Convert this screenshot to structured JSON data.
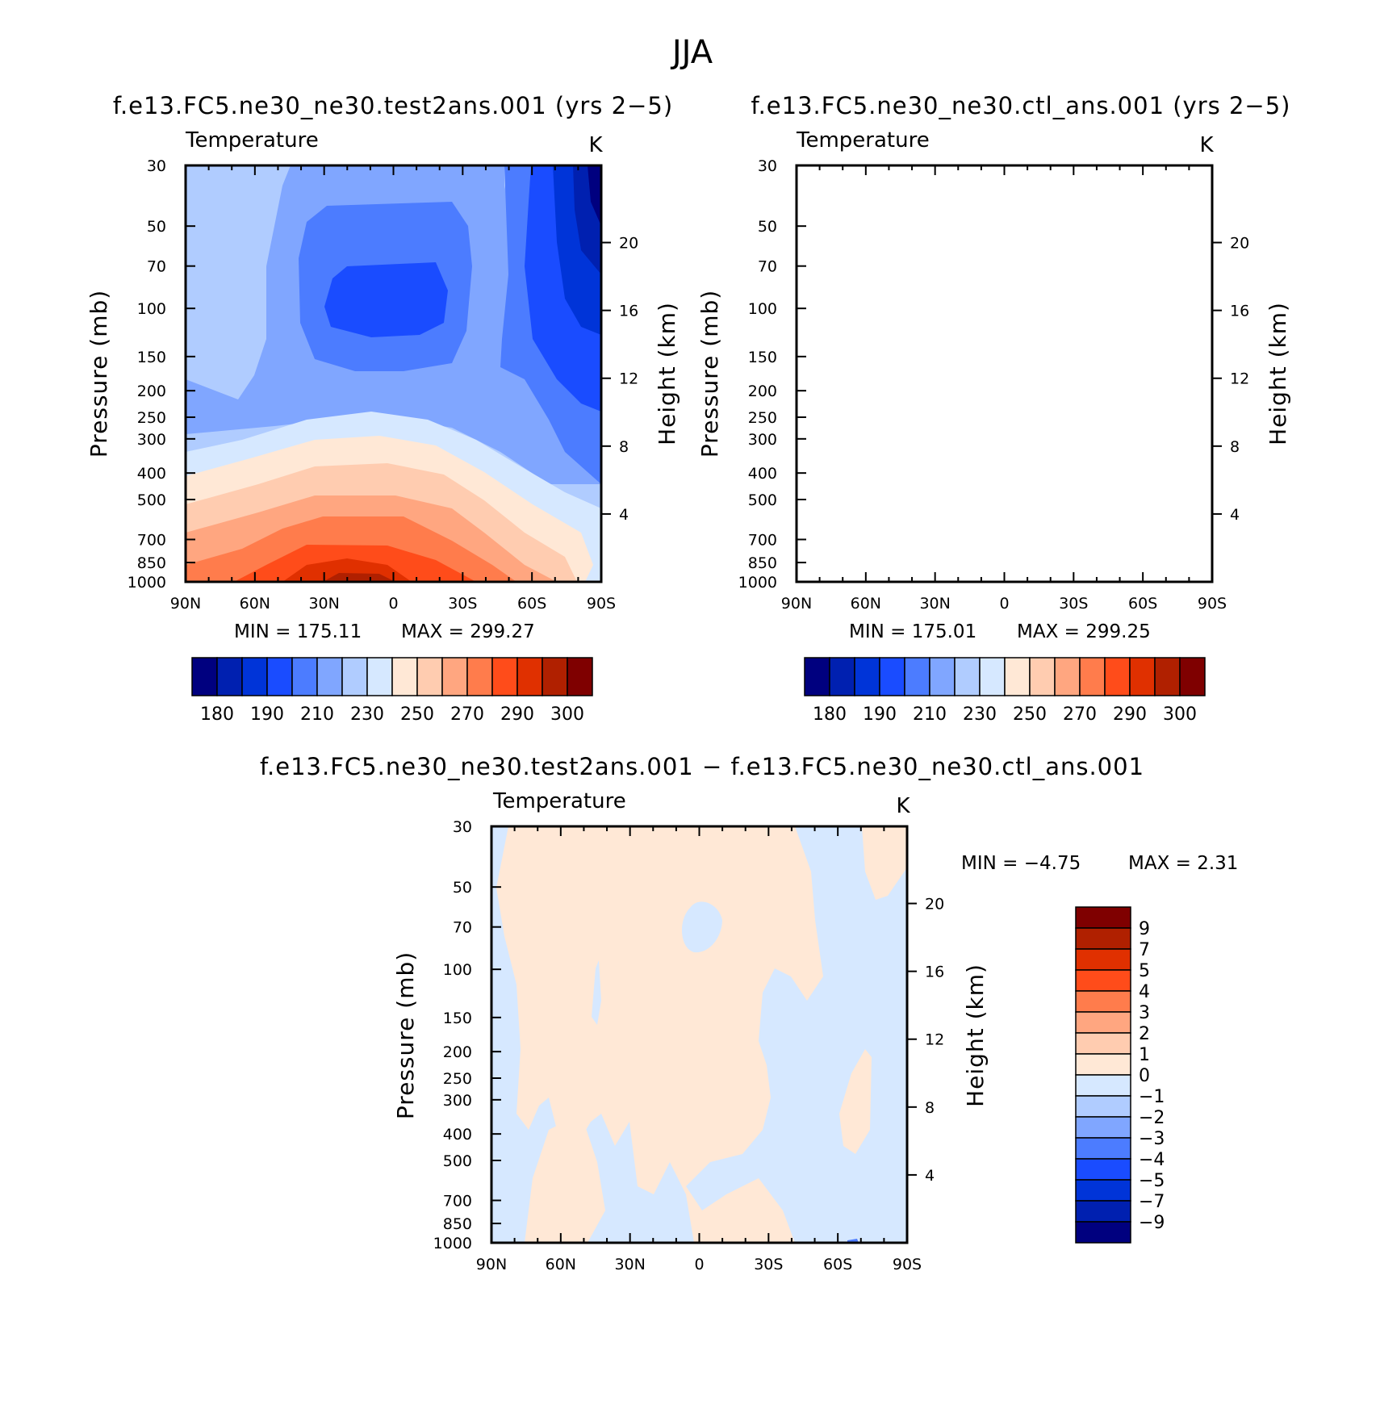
{
  "figure": {
    "title": "JJA",
    "diff_title": "f.e13.FC5.ne30_ne30.test2ans.001  −  f.e13.FC5.ne30_ne30.ctl_ans.001"
  },
  "colors": {
    "abs": [
      "#00007f",
      "#0020b0",
      "#0034d8",
      "#1a4cff",
      "#4c7cff",
      "#80a6ff",
      "#b0ccff",
      "#d6e8ff",
      "#ffe8d6",
      "#ffccb0",
      "#ffa680",
      "#ff7c4c",
      "#ff4c1a",
      "#e03000",
      "#b02000",
      "#7f0000"
    ],
    "diff": [
      "#00007f",
      "#0020b0",
      "#0034d8",
      "#1a4cff",
      "#4c7cff",
      "#80a6ff",
      "#b0ccff",
      "#d6e8ff",
      "#ffe8d6",
      "#ffccb0",
      "#ffa680",
      "#ff7c4c",
      "#ff4c1a",
      "#e03000",
      "#b02000",
      "#7f0000"
    ]
  },
  "chart_data": [
    {
      "type": "contour",
      "panel": "test",
      "title": "f.e13.FC5.ne30_ne30.test2ans.001 (yrs 2−5)",
      "variable": "Temperature",
      "units": "K",
      "xlabel": "",
      "ylabel": "Pressure (mb)",
      "y2label": "Height (km)",
      "x_ticks": [
        "90N",
        "60N",
        "30N",
        "0",
        "30S",
        "60S",
        "90S"
      ],
      "y_ticks": [
        "30",
        "50",
        "70",
        "100",
        "150",
        "200",
        "250",
        "300",
        "400",
        "500",
        "700",
        "850",
        "1000"
      ],
      "y_scale": "log",
      "ylim": [
        1000,
        30
      ],
      "y2_ticks": [
        "4",
        "8",
        "12",
        "16",
        "20"
      ],
      "min_text": "MIN  =  175.11",
      "max_text": "MAX  =  299.27",
      "min": 175.11,
      "max": 299.27,
      "colorbar_labels": [
        "180",
        "190",
        "210",
        "230",
        "250",
        "270",
        "290",
        "300"
      ]
    },
    {
      "type": "contour",
      "panel": "ctl",
      "title": "f.e13.FC5.ne30_ne30.ctl_ans.001 (yrs 2−5)",
      "variable": "Temperature",
      "units": "K",
      "xlabel": "",
      "ylabel": "Pressure (mb)",
      "y2label": "Height (km)",
      "x_ticks": [
        "90N",
        "60N",
        "30N",
        "0",
        "30S",
        "60S",
        "90S"
      ],
      "y_ticks": [
        "30",
        "50",
        "70",
        "100",
        "150",
        "200",
        "250",
        "300",
        "400",
        "500",
        "700",
        "850",
        "1000"
      ],
      "y_scale": "log",
      "ylim": [
        1000,
        30
      ],
      "y2_ticks": [
        "4",
        "8",
        "12",
        "16",
        "20"
      ],
      "min_text": "MIN  =  175.01",
      "max_text": "MAX  =  299.25",
      "min": 175.01,
      "max": 299.25,
      "colorbar_labels": [
        "180",
        "190",
        "210",
        "230",
        "250",
        "270",
        "290",
        "300"
      ]
    },
    {
      "type": "contour",
      "panel": "diff",
      "variable": "Temperature",
      "units": "K",
      "xlabel": "",
      "ylabel": "Pressure (mb)",
      "y2label": "Height (km)",
      "x_ticks": [
        "90N",
        "60N",
        "30N",
        "0",
        "30S",
        "60S",
        "90S"
      ],
      "y_ticks": [
        "30",
        "50",
        "70",
        "100",
        "150",
        "200",
        "250",
        "300",
        "400",
        "500",
        "700",
        "850",
        "1000"
      ],
      "y_scale": "log",
      "ylim": [
        1000,
        30
      ],
      "y2_ticks": [
        "4",
        "8",
        "12",
        "16",
        "20"
      ],
      "min_text": "MIN  =     −4.75",
      "max_text": "MAX  =      2.31",
      "min": -4.75,
      "max": 2.31,
      "colorbar_labels": [
        "9",
        "7",
        "5",
        "4",
        "3",
        "2",
        "1",
        "0",
        "−1",
        "−2",
        "−3",
        "−4",
        "−5",
        "−7",
        "−9"
      ]
    }
  ]
}
